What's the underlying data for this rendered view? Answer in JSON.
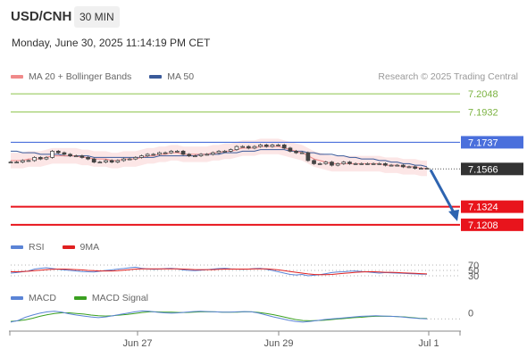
{
  "header": {
    "symbol": "USD/CNH",
    "interval": "30 MIN",
    "datetime": "Monday, June 30, 2025 11:14:19 PM CET"
  },
  "legends": {
    "price": [
      {
        "label": "MA 20 + Bollinger Bands",
        "color": "#f08a8a"
      },
      {
        "label": "MA 50",
        "color": "#3a5a9a"
      }
    ],
    "rsi": [
      {
        "label": "RSI",
        "color": "#5b84d6"
      },
      {
        "label": "9MA",
        "color": "#e02020"
      }
    ],
    "macd": [
      {
        "label": "MACD",
        "color": "#5b84d6"
      },
      {
        "label": "MACD Signal",
        "color": "#3aa020"
      }
    ]
  },
  "credit": "Research © 2025 Trading Central",
  "chart_data": {
    "type": "line",
    "title": "USD/CNH",
    "x_ticks": [
      "Jun 27",
      "Jun 29",
      "Jul 1"
    ],
    "price_levels": [
      {
        "value": 7.2048,
        "label": "7.2048",
        "kind": "target",
        "color": "#8bc34a"
      },
      {
        "value": 7.1932,
        "label": "7.1932",
        "kind": "target",
        "color": "#8bc34a"
      },
      {
        "value": 7.1737,
        "label": "7.1737",
        "kind": "pivot",
        "color": "#4a6fdc"
      },
      {
        "value": 7.1566,
        "label": "7.1566",
        "kind": "last",
        "color": "#333333"
      },
      {
        "value": 7.1324,
        "label": "7.1324",
        "kind": "support",
        "color": "#e8141c"
      },
      {
        "value": 7.1208,
        "label": "7.1208",
        "kind": "support",
        "color": "#e8141c"
      }
    ],
    "price_range": [
      7.115,
      7.21
    ],
    "close": [
      7.161,
      7.161,
      7.162,
      7.162,
      7.164,
      7.163,
      7.164,
      7.168,
      7.167,
      7.166,
      7.165,
      7.165,
      7.164,
      7.163,
      7.161,
      7.161,
      7.162,
      7.161,
      7.162,
      7.163,
      7.163,
      7.164,
      7.165,
      7.166,
      7.166,
      7.167,
      7.167,
      7.168,
      7.168,
      7.166,
      7.165,
      7.165,
      7.166,
      7.166,
      7.167,
      7.168,
      7.168,
      7.169,
      7.171,
      7.171,
      7.17,
      7.171,
      7.172,
      7.171,
      7.172,
      7.172,
      7.17,
      7.168,
      7.167,
      7.167,
      7.162,
      7.16,
      7.16,
      7.161,
      7.159,
      7.16,
      7.161,
      7.16,
      7.16,
      7.16,
      7.16,
      7.16,
      7.16,
      7.159,
      7.159,
      7.159,
      7.158,
      7.158,
      7.157,
      7.157,
      7.157
    ],
    "ma20": [
      7.162,
      7.162,
      7.162,
      7.163,
      7.163,
      7.163,
      7.164,
      7.165,
      7.165,
      7.165,
      7.165,
      7.165,
      7.164,
      7.164,
      7.163,
      7.163,
      7.163,
      7.162,
      7.162,
      7.163,
      7.163,
      7.163,
      7.164,
      7.165,
      7.165,
      7.166,
      7.166,
      7.167,
      7.167,
      7.166,
      7.166,
      7.166,
      7.166,
      7.166,
      7.167,
      7.167,
      7.168,
      7.168,
      7.169,
      7.17,
      7.17,
      7.17,
      7.171,
      7.171,
      7.171,
      7.171,
      7.17,
      7.169,
      7.168,
      7.167,
      7.165,
      7.163,
      7.162,
      7.161,
      7.16,
      7.16,
      7.16,
      7.16,
      7.16,
      7.16,
      7.16,
      7.16,
      7.16,
      7.159,
      7.159,
      7.159,
      7.158,
      7.158,
      7.158,
      7.157,
      7.157
    ],
    "ma50": [
      7.168,
      7.168,
      7.167,
      7.167,
      7.167,
      7.166,
      7.166,
      7.166,
      7.166,
      7.165,
      7.165,
      7.165,
      7.165,
      7.165,
      7.164,
      7.164,
      7.164,
      7.164,
      7.164,
      7.164,
      7.164,
      7.164,
      7.164,
      7.164,
      7.164,
      7.165,
      7.165,
      7.165,
      7.165,
      7.165,
      7.165,
      7.165,
      7.166,
      7.166,
      7.166,
      7.166,
      7.167,
      7.167,
      7.167,
      7.168,
      7.168,
      7.168,
      7.169,
      7.169,
      7.169,
      7.169,
      7.169,
      7.168,
      7.168,
      7.168,
      7.167,
      7.167,
      7.166,
      7.166,
      7.166,
      7.165,
      7.165,
      7.164,
      7.164,
      7.163,
      7.163,
      7.163,
      7.162,
      7.162,
      7.161,
      7.161,
      7.16,
      7.16,
      7.159,
      7.159,
      7.158
    ],
    "bb_width": 0.005,
    "forecast_arrow": {
      "from": 7.1566,
      "to": 7.1208
    },
    "rsi": {
      "levels": [
        {
          "value": 70,
          "label": "70"
        },
        {
          "value": 50,
          "label": "50"
        },
        {
          "value": 30,
          "label": "30"
        }
      ],
      "range": [
        0,
        100
      ],
      "rsi": [
        40,
        42,
        45,
        48,
        55,
        58,
        60,
        57,
        54,
        52,
        50,
        48,
        46,
        45,
        44,
        47,
        50,
        52,
        55,
        57,
        60,
        62,
        58,
        56,
        54,
        55,
        57,
        58,
        56,
        52,
        50,
        49,
        51,
        53,
        55,
        57,
        58,
        56,
        55,
        54,
        55,
        57,
        58,
        54,
        50,
        45,
        40,
        35,
        33,
        35,
        30,
        32,
        34,
        38,
        42,
        44,
        45,
        47,
        48,
        46,
        44,
        42,
        40,
        42,
        41,
        40,
        39,
        38,
        37,
        36,
        36
      ],
      "ma9": [
        45,
        45,
        46,
        47,
        49,
        51,
        53,
        54,
        55,
        55,
        54,
        53,
        52,
        50,
        49,
        48,
        48,
        48,
        49,
        51,
        53,
        55,
        56,
        56,
        56,
        56,
        56,
        56,
        56,
        55,
        54,
        53,
        53,
        53,
        53,
        54,
        55,
        55,
        55,
        55,
        55,
        56,
        56,
        56,
        54,
        52,
        49,
        46,
        43,
        40,
        37,
        35,
        34,
        34,
        35,
        37,
        39,
        41,
        43,
        44,
        45,
        45,
        44,
        43,
        43,
        42,
        41,
        40,
        39,
        38,
        37
      ]
    },
    "macd": {
      "levels": [
        {
          "value": 0,
          "label": "0"
        }
      ],
      "range": [
        -0.003,
        0.004
      ],
      "macd": [
        -0.001,
        -0.0005,
        0.0005,
        0.0012,
        0.0018,
        0.0022,
        0.0024,
        0.0021,
        0.0016,
        0.0012,
        0.0009,
        0.0006,
        0.0004,
        0.0006,
        0.001,
        0.0014,
        0.0018,
        0.0022,
        0.0025,
        0.0024,
        0.0021,
        0.0019,
        0.0018,
        0.0019,
        0.0021,
        0.0023,
        0.0024,
        0.0023,
        0.0022,
        0.0021,
        0.0021,
        0.0022,
        0.0023,
        0.0022,
        0.0018,
        0.0012,
        0.0006,
        0.0001,
        -0.0004,
        -0.0008,
        -0.001,
        -0.0008,
        -0.0005,
        -0.0002,
        0.0,
        0.0002,
        0.0004,
        0.0006,
        0.0008,
        0.0009,
        0.001,
        0.0009,
        0.0008,
        0.0007,
        0.0005,
        0.0003,
        0.0001,
        0.0
      ],
      "signal": [
        -0.0008,
        -0.0006,
        -0.0003,
        0.0002,
        0.0008,
        0.0013,
        0.0017,
        0.0019,
        0.0019,
        0.0017,
        0.0015,
        0.0012,
        0.001,
        0.0009,
        0.001,
        0.0012,
        0.0014,
        0.0017,
        0.002,
        0.0022,
        0.0022,
        0.0021,
        0.0021,
        0.002,
        0.002,
        0.0021,
        0.0022,
        0.0022,
        0.0022,
        0.0021,
        0.0021,
        0.0021,
        0.0022,
        0.0022,
        0.002,
        0.0017,
        0.0013,
        0.0008,
        0.0003,
        -0.0002,
        -0.0005,
        -0.0006,
        -0.0005,
        -0.0004,
        -0.0002,
        0.0,
        0.0002,
        0.0004,
        0.0005,
        0.0007,
        0.0008,
        0.0008,
        0.0008,
        0.0007,
        0.0006,
        0.0004,
        0.0002,
        0.0001
      ]
    }
  }
}
